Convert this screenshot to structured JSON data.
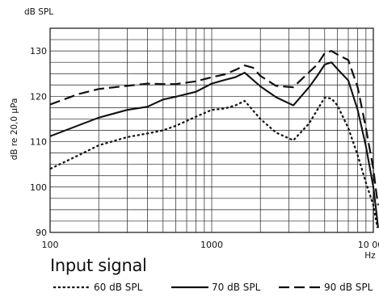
{
  "chart_data": {
    "type": "line",
    "unit_label": "dB SPL",
    "ylabel": "dB re 20,0 µPa",
    "xlabel": "Hz",
    "x_scale": "log",
    "xlim": [
      100,
      10000
    ],
    "ylim": [
      90,
      135
    ],
    "x_ticks": [
      {
        "value": 100,
        "label": "100"
      },
      {
        "value": 1000,
        "label": "1000"
      },
      {
        "value": 10000,
        "label": "10 000"
      }
    ],
    "y_ticks": [
      {
        "value": 90,
        "label": "90"
      },
      {
        "value": 100,
        "label": "100"
      },
      {
        "value": 110,
        "label": "110"
      },
      {
        "value": 120,
        "label": "120"
      },
      {
        "value": 130,
        "label": "130"
      }
    ],
    "grid": true,
    "legend_title": "Input signal",
    "legend_position": "bottom",
    "series": [
      {
        "name": "60 dB SPL",
        "style": "dotted",
        "color": "#111111",
        "points": [
          [
            100,
            104
          ],
          [
            150,
            107
          ],
          [
            200,
            109.2
          ],
          [
            300,
            111
          ],
          [
            400,
            111.8
          ],
          [
            500,
            112.5
          ],
          [
            600,
            113.5
          ],
          [
            800,
            115.5
          ],
          [
            1000,
            117
          ],
          [
            1200,
            117.3
          ],
          [
            1400,
            118
          ],
          [
            1600,
            119
          ],
          [
            2000,
            115
          ],
          [
            2500,
            112
          ],
          [
            3200,
            110.3
          ],
          [
            4000,
            114
          ],
          [
            4500,
            117
          ],
          [
            5000,
            119.7
          ],
          [
            5500,
            119.5
          ],
          [
            6000,
            118
          ],
          [
            7000,
            113
          ],
          [
            8000,
            107
          ],
          [
            9000,
            101
          ],
          [
            10000,
            96
          ],
          [
            10600,
            91
          ]
        ]
      },
      {
        "name": "70 dB SPL",
        "style": "solid",
        "color": "#111111",
        "points": [
          [
            100,
            111.2
          ],
          [
            150,
            113.6
          ],
          [
            200,
            115.3
          ],
          [
            300,
            117
          ],
          [
            400,
            117.7
          ],
          [
            500,
            119.3
          ],
          [
            600,
            119.9
          ],
          [
            800,
            121
          ],
          [
            1000,
            122.8
          ],
          [
            1200,
            123.6
          ],
          [
            1400,
            124.2
          ],
          [
            1600,
            125.2
          ],
          [
            2000,
            122.2
          ],
          [
            2500,
            119.8
          ],
          [
            3200,
            118
          ],
          [
            4000,
            122
          ],
          [
            4500,
            124.5
          ],
          [
            5000,
            127
          ],
          [
            5500,
            127.5
          ],
          [
            6000,
            126
          ],
          [
            7000,
            123.5
          ],
          [
            8000,
            117
          ],
          [
            9000,
            109
          ],
          [
            10000,
            100
          ],
          [
            10400,
            95
          ],
          [
            10700,
            91
          ]
        ]
      },
      {
        "name": "90 dB SPL",
        "style": "dashed",
        "color": "#111111",
        "points": [
          [
            100,
            118.2
          ],
          [
            150,
            120.5
          ],
          [
            200,
            121.6
          ],
          [
            300,
            122.3
          ],
          [
            400,
            122.8
          ],
          [
            500,
            122.7
          ],
          [
            600,
            122.7
          ],
          [
            800,
            123.3
          ],
          [
            1000,
            124.2
          ],
          [
            1200,
            124.8
          ],
          [
            1400,
            125.8
          ],
          [
            1600,
            126.8
          ],
          [
            1800,
            126.3
          ],
          [
            2000,
            124.5
          ],
          [
            2500,
            122.3
          ],
          [
            3200,
            122
          ],
          [
            4000,
            125.3
          ],
          [
            4500,
            127
          ],
          [
            5000,
            129.5
          ],
          [
            5500,
            130
          ],
          [
            6000,
            129.2
          ],
          [
            7000,
            128
          ],
          [
            8000,
            122
          ],
          [
            9000,
            113
          ],
          [
            10000,
            104
          ],
          [
            10500,
            98
          ],
          [
            10700,
            96
          ]
        ]
      }
    ]
  }
}
